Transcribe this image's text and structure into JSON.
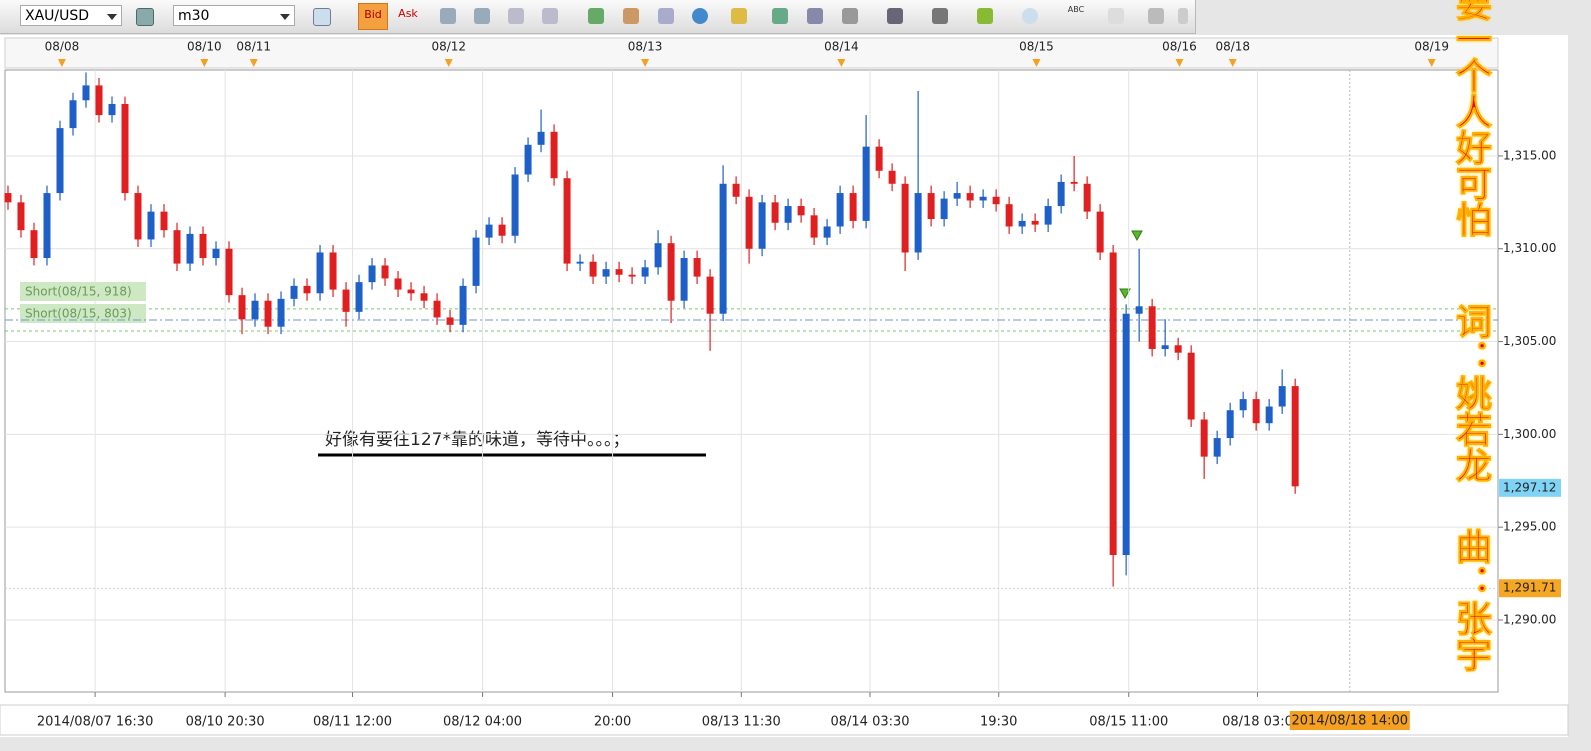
{
  "toolbar": {
    "symbol": "XAU/USD",
    "timeframe": "m30",
    "bid": "Bid",
    "ask": "Ask",
    "abc": "ABC"
  },
  "lyrics": [
    "要一个人好可怕",
    "词：姚若龙",
    "曲：张宇"
  ],
  "chart_data": {
    "type": "candlestick",
    "up_color": "#1f5fc8",
    "down_color": "#e02020",
    "annotation": "好像有要往127*靠的味道，等待中。。。；",
    "xlim": [
      -0.23,
      114.6
    ],
    "ylim": [
      1286.12,
      1319.63
    ],
    "yticks": [
      {
        "value": 1290,
        "label": "1,290.00"
      },
      {
        "value": 1295,
        "label": "1,295.00"
      },
      {
        "value": 1300,
        "label": "1,300.00"
      },
      {
        "value": 1305,
        "label": "1,305.00"
      },
      {
        "value": 1310,
        "label": "1,310.00"
      },
      {
        "value": 1315,
        "label": "1,315.00"
      }
    ],
    "xticks": [
      {
        "value": 6.7,
        "label": "2014/08/07 16:30"
      },
      {
        "value": 16.7,
        "label": "08/10 20:30"
      },
      {
        "value": 26.5,
        "label": "08/11 12:00"
      },
      {
        "value": 36.5,
        "label": "08/12 04:00"
      },
      {
        "value": 46.5,
        "label": "20:00"
      },
      {
        "value": 56.4,
        "label": "08/13 11:30"
      },
      {
        "value": 66.3,
        "label": "08/14 03:30"
      },
      {
        "value": 76.2,
        "label": "19:30"
      },
      {
        "value": 86.2,
        "label": "08/15 11:00"
      },
      {
        "value": 96.1,
        "label": "08/18 03:0"
      }
    ],
    "top_dates": [
      {
        "value": 4.15,
        "label": "08/08"
      },
      {
        "value": 15.1,
        "label": "08/10"
      },
      {
        "value": 18.9,
        "label": "08/11"
      },
      {
        "value": 33.9,
        "label": "08/12"
      },
      {
        "value": 49,
        "label": "08/13"
      },
      {
        "value": 64.1,
        "label": "08/14"
      },
      {
        "value": 79.1,
        "label": "08/15"
      },
      {
        "value": 90.1,
        "label": "08/16"
      },
      {
        "value": 94.2,
        "label": "08/18"
      },
      {
        "value": 109.5,
        "label": "08/19"
      }
    ],
    "cursor": {
      "value": 103.2,
      "label": "2014/08/18 14:00"
    },
    "price_labels": [
      {
        "value": 1297.12,
        "label": "1,297.12",
        "color": "#7fd4f5"
      },
      {
        "value": 1291.71,
        "label": "1,291.71",
        "color": "#f5a623"
      }
    ],
    "orders": [
      {
        "label": "Short(08/15, 918)",
        "price": 1306.76
      },
      {
        "label": "Short(08/15, 803)",
        "price": 1305.57
      }
    ],
    "bid_line": 1306.16,
    "ohlc": [
      [
        1313,
        1313.4,
        1312.1,
        1312.5
      ],
      [
        1312.5,
        1312.9,
        1310.6,
        1311
      ],
      [
        1311,
        1311.4,
        1309.1,
        1309.5
      ],
      [
        1309.5,
        1313.4,
        1309.1,
        1313
      ],
      [
        1313,
        1316.9,
        1312.6,
        1316.5
      ],
      [
        1316.5,
        1318.4,
        1316.1,
        1318
      ],
      [
        1318,
        1319.5,
        1317.6,
        1318.8
      ],
      [
        1318.8,
        1319.2,
        1316.8,
        1317.2
      ],
      [
        1317.2,
        1318.2,
        1316.8,
        1317.8
      ],
      [
        1317.8,
        1318.2,
        1312.6,
        1313
      ],
      [
        1313,
        1313.4,
        1310.1,
        1310.5
      ],
      [
        1310.5,
        1312.4,
        1310.1,
        1312
      ],
      [
        1312,
        1312.4,
        1310.6,
        1311
      ],
      [
        1311,
        1311.4,
        1308.8,
        1309.2
      ],
      [
        1309.2,
        1311.2,
        1308.8,
        1310.8
      ],
      [
        1310.8,
        1311.2,
        1309.1,
        1309.5
      ],
      [
        1309.5,
        1310.4,
        1309.1,
        1310
      ],
      [
        1310,
        1310.4,
        1307.1,
        1307.5
      ],
      [
        1307.5,
        1307.9,
        1305.4,
        1306.2
      ],
      [
        1306.2,
        1307.6,
        1305.8,
        1307.2
      ],
      [
        1307.2,
        1307.6,
        1305.4,
        1305.8
      ],
      [
        1305.8,
        1307.7,
        1305.4,
        1307.3
      ],
      [
        1307.3,
        1308.4,
        1306.9,
        1308
      ],
      [
        1308,
        1308.4,
        1307.2,
        1307.6
      ],
      [
        1307.6,
        1310.2,
        1307.2,
        1309.8
      ],
      [
        1309.8,
        1310.2,
        1307.4,
        1307.8
      ],
      [
        1307.8,
        1308.2,
        1305.8,
        1306.6
      ],
      [
        1306.6,
        1308.6,
        1306.2,
        1308.2
      ],
      [
        1308.2,
        1309.5,
        1307.8,
        1309.1
      ],
      [
        1309.1,
        1309.5,
        1308,
        1308.4
      ],
      [
        1308.4,
        1308.8,
        1307.4,
        1307.8
      ],
      [
        1307.8,
        1308.2,
        1307.2,
        1307.6
      ],
      [
        1307.6,
        1308,
        1306.8,
        1307.2
      ],
      [
        1307.2,
        1307.6,
        1305.9,
        1306.3
      ],
      [
        1306.3,
        1306.7,
        1305.5,
        1305.9
      ],
      [
        1305.9,
        1308.4,
        1305.5,
        1308
      ],
      [
        1308,
        1311,
        1307.6,
        1310.6
      ],
      [
        1310.6,
        1311.7,
        1310.2,
        1311.3
      ],
      [
        1311.3,
        1311.7,
        1310.3,
        1310.7
      ],
      [
        1310.7,
        1314.4,
        1310.3,
        1314
      ],
      [
        1314,
        1316,
        1313.6,
        1315.6
      ],
      [
        1315.6,
        1317.5,
        1315.2,
        1316.3
      ],
      [
        1316.3,
        1316.7,
        1313.4,
        1313.8
      ],
      [
        1313.8,
        1314.2,
        1308.8,
        1309.2
      ],
      [
        1309.2,
        1309.7,
        1308.8,
        1309.3
      ],
      [
        1309.3,
        1309.7,
        1308.1,
        1308.5
      ],
      [
        1308.5,
        1309.3,
        1308.1,
        1308.9
      ],
      [
        1308.9,
        1309.3,
        1308.2,
        1308.6
      ],
      [
        1308.6,
        1309,
        1308.1,
        1308.5
      ],
      [
        1308.5,
        1309.4,
        1308.1,
        1309
      ],
      [
        1309,
        1311,
        1308.6,
        1310.3
      ],
      [
        1310.3,
        1310.7,
        1306,
        1307.2
      ],
      [
        1307.2,
        1309.9,
        1306.8,
        1309.5
      ],
      [
        1309.5,
        1309.9,
        1308.1,
        1308.5
      ],
      [
        1308.5,
        1308.9,
        1304.5,
        1306.5
      ],
      [
        1306.5,
        1314.5,
        1306.1,
        1313.5
      ],
      [
        1313.5,
        1313.9,
        1312.4,
        1312.8
      ],
      [
        1312.8,
        1313.2,
        1309.2,
        1310
      ],
      [
        1310,
        1312.9,
        1309.6,
        1312.5
      ],
      [
        1312.5,
        1312.9,
        1311,
        1311.4
      ],
      [
        1311.4,
        1312.7,
        1311,
        1312.3
      ],
      [
        1312.3,
        1312.7,
        1311.4,
        1311.8
      ],
      [
        1311.8,
        1312.2,
        1310.2,
        1310.6
      ],
      [
        1310.6,
        1311.6,
        1310.2,
        1311.2
      ],
      [
        1311.2,
        1313.4,
        1310.8,
        1313
      ],
      [
        1313,
        1313.4,
        1311.1,
        1311.5
      ],
      [
        1311.5,
        1317.2,
        1311.1,
        1315.5
      ],
      [
        1315.5,
        1315.9,
        1313.8,
        1314.2
      ],
      [
        1314.2,
        1314.6,
        1313.1,
        1313.5
      ],
      [
        1313.5,
        1313.9,
        1308.8,
        1309.8
      ],
      [
        1309.8,
        1318.5,
        1309.4,
        1313
      ],
      [
        1313,
        1313.4,
        1311.2,
        1311.6
      ],
      [
        1311.6,
        1313.1,
        1311.2,
        1312.7
      ],
      [
        1312.7,
        1313.6,
        1312.3,
        1313
      ],
      [
        1313,
        1313.4,
        1312.2,
        1312.6
      ],
      [
        1312.6,
        1313.2,
        1312.2,
        1312.8
      ],
      [
        1312.8,
        1313.2,
        1312,
        1312.4
      ],
      [
        1312.4,
        1312.8,
        1310.8,
        1311.2
      ],
      [
        1311.2,
        1311.9,
        1310.8,
        1311.5
      ],
      [
        1311.5,
        1311.9,
        1310.9,
        1311.3
      ],
      [
        1311.3,
        1312.7,
        1310.9,
        1312.3
      ],
      [
        1312.3,
        1314,
        1311.9,
        1313.6
      ],
      [
        1313.6,
        1315,
        1313.1,
        1313.5
      ],
      [
        1313.5,
        1313.9,
        1311.6,
        1312
      ],
      [
        1312,
        1312.4,
        1309.4,
        1309.8
      ],
      [
        1309.8,
        1310.2,
        1291.8,
        1293.5
      ],
      [
        1293.5,
        1307,
        1292.4,
        1306.5
      ],
      [
        1306.5,
        1310,
        1305,
        1306.9
      ],
      [
        1306.9,
        1307.3,
        1304.2,
        1304.6
      ],
      [
        1304.6,
        1306.2,
        1304.2,
        1304.8
      ],
      [
        1304.8,
        1305.2,
        1304,
        1304.4
      ],
      [
        1304.4,
        1304.8,
        1300.4,
        1300.8
      ],
      [
        1300.8,
        1301.2,
        1297.6,
        1298.8
      ],
      [
        1298.8,
        1300.2,
        1298.4,
        1299.8
      ],
      [
        1299.8,
        1301.7,
        1299.4,
        1301.3
      ],
      [
        1301.3,
        1302.3,
        1300.9,
        1301.9
      ],
      [
        1301.9,
        1302.3,
        1300.2,
        1300.6
      ],
      [
        1300.6,
        1301.9,
        1300.2,
        1301.5
      ],
      [
        1301.5,
        1303.5,
        1301.1,
        1302.6
      ],
      [
        1302.6,
        1303,
        1296.8,
        1297.2
      ]
    ]
  }
}
